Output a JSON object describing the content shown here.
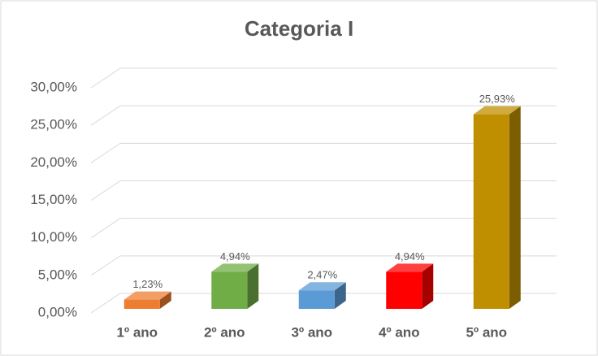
{
  "chart_data": {
    "type": "bar3d",
    "title": "Categoria I",
    "categories": [
      "1º ano",
      "2º ano",
      "3º ano",
      "4º ano",
      "5º ano"
    ],
    "values": [
      1.23,
      4.94,
      2.47,
      4.94,
      25.93
    ],
    "value_labels": [
      "1,23%",
      "4,94%",
      "2,47%",
      "4,94%",
      "25,93%"
    ],
    "colors": [
      "#ed7d31",
      "#70ad47",
      "#5b9bd5",
      "#ff0000",
      "#bf8f00"
    ],
    "ylim": [
      0,
      30
    ],
    "yticks": [
      {
        "value": 0,
        "label": "0,00%"
      },
      {
        "value": 5,
        "label": "5,00%"
      },
      {
        "value": 10,
        "label": "10,00%"
      },
      {
        "value": 15,
        "label": "15,00%"
      },
      {
        "value": 20,
        "label": "20,00%"
      },
      {
        "value": 25,
        "label": "25,00%"
      },
      {
        "value": 30,
        "label": "30,00%"
      }
    ],
    "grid": true
  }
}
